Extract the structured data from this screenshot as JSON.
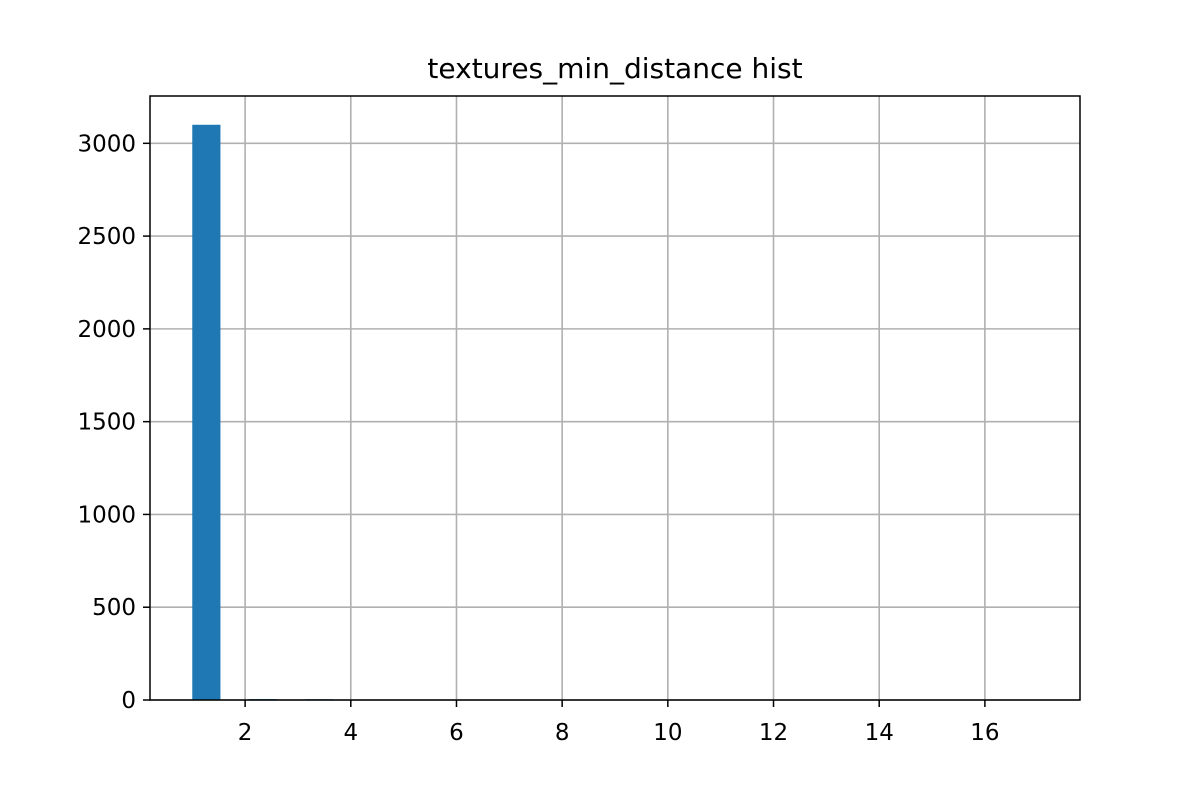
{
  "chart_data": {
    "type": "bar",
    "subtype": "histogram",
    "title": "textures_min_distance hist",
    "xlabel": "",
    "ylabel": "",
    "xlim": [
      0.2,
      17.8
    ],
    "ylim": [
      0,
      3255
    ],
    "x_ticks": [
      2,
      4,
      6,
      8,
      10,
      12,
      14,
      16
    ],
    "y_ticks": [
      0,
      500,
      1000,
      1500,
      2000,
      2500,
      3000
    ],
    "grid": true,
    "legend": "none",
    "bar_color": "#1f77b4",
    "bins": [
      {
        "x0": 1.0,
        "x1": 1.533,
        "count": 3100
      },
      {
        "x0": 2.067,
        "x1": 2.6,
        "count": 5
      },
      {
        "x0": 3.133,
        "x1": 3.667,
        "count": 4
      }
    ]
  }
}
